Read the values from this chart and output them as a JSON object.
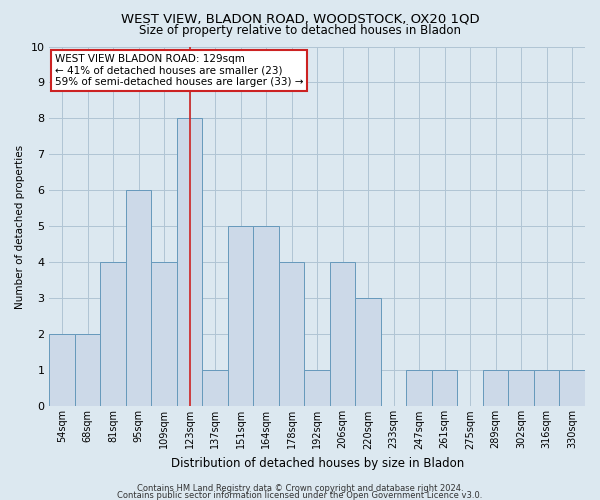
{
  "title": "WEST VIEW, BLADON ROAD, WOODSTOCK, OX20 1QD",
  "subtitle": "Size of property relative to detached houses in Bladon",
  "xlabel": "Distribution of detached houses by size in Bladon",
  "ylabel": "Number of detached properties",
  "categories": [
    "54sqm",
    "68sqm",
    "81sqm",
    "95sqm",
    "109sqm",
    "123sqm",
    "137sqm",
    "151sqm",
    "164sqm",
    "178sqm",
    "192sqm",
    "206sqm",
    "220sqm",
    "233sqm",
    "247sqm",
    "261sqm",
    "275sqm",
    "289sqm",
    "302sqm",
    "316sqm",
    "330sqm"
  ],
  "values": [
    2,
    2,
    4,
    6,
    4,
    8,
    1,
    5,
    5,
    4,
    1,
    4,
    3,
    0,
    1,
    1,
    0,
    1,
    1,
    1,
    1
  ],
  "bar_color": "#ccd9e8",
  "bar_edge_color": "#6699bb",
  "highlight_bar_index": 5,
  "highlight_line_color": "#cc2222",
  "ylim": [
    0,
    10
  ],
  "yticks": [
    0,
    1,
    2,
    3,
    4,
    5,
    6,
    7,
    8,
    9,
    10
  ],
  "annotation_text": "WEST VIEW BLADON ROAD: 129sqm\n← 41% of detached houses are smaller (23)\n59% of semi-detached houses are larger (33) →",
  "annotation_box_facecolor": "#ffffff",
  "annotation_box_edgecolor": "#cc2222",
  "footer1": "Contains HM Land Registry data © Crown copyright and database right 2024.",
  "footer2": "Contains public sector information licensed under the Open Government Licence v3.0.",
  "bg_color": "#dce8f0",
  "grid_color": "#b0c4d4",
  "title_fontsize": 9.5,
  "subtitle_fontsize": 8.5,
  "xlabel_fontsize": 8.5,
  "ylabel_fontsize": 7.5,
  "tick_fontsize": 7,
  "annot_fontsize": 7.5,
  "footer_fontsize": 6
}
